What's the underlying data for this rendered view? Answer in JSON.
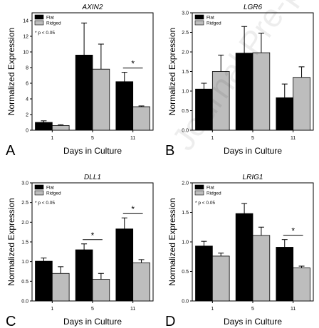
{
  "figure": {
    "watermark": "Journal Pre-proof",
    "legend_labels": [
      "Flat",
      "Ridged"
    ],
    "significance_note": "* p < 0.05",
    "ylabel": "Normalized Expression",
    "xlabel": "Days in Culture",
    "colors": {
      "flat": "#000000",
      "ridged": "#bdbdbd"
    }
  },
  "chart_data": [
    {
      "type": "bar",
      "panel": "A",
      "title": "AXIN2",
      "categories": [
        "1",
        "5",
        "11"
      ],
      "series": [
        {
          "name": "Flat",
          "values": [
            1.0,
            9.6,
            6.2
          ],
          "error": [
            0.2,
            4.1,
            1.2
          ]
        },
        {
          "name": "Ridged",
          "values": [
            0.6,
            7.8,
            3.0
          ],
          "error": [
            0.1,
            3.2,
            0.1
          ]
        }
      ],
      "ylim": [
        0,
        15
      ],
      "yticks": [
        "0",
        "2",
        "4",
        "6",
        "8",
        "10",
        "12",
        "14"
      ],
      "yticks_values": [
        0,
        2,
        4,
        6,
        8,
        10,
        12,
        14
      ],
      "xlabel": "Days in Culture",
      "ylabel": "Normalized Expression",
      "legend": "top-left",
      "significance": [
        {
          "category": "11",
          "label": "*"
        }
      ],
      "note": "* p < 0.05"
    },
    {
      "type": "bar",
      "panel": "B",
      "title": "LGR6",
      "categories": [
        "1",
        "5",
        "11"
      ],
      "series": [
        {
          "name": "Flat",
          "values": [
            1.05,
            1.97,
            0.83
          ],
          "error": [
            0.15,
            0.68,
            0.35
          ]
        },
        {
          "name": "Ridged",
          "values": [
            1.5,
            1.98,
            1.35
          ],
          "error": [
            0.42,
            0.5,
            0.27
          ]
        }
      ],
      "ylim": [
        0,
        3.0
      ],
      "yticks": [
        "0.0",
        "0.5",
        "1.0",
        "1.5",
        "2.0",
        "2.5",
        "3.0"
      ],
      "yticks_values": [
        0,
        0.5,
        1.0,
        1.5,
        2.0,
        2.5,
        3.0
      ],
      "xlabel": "Days in Culture",
      "ylabel": "Normalized Expression",
      "legend": "top-left",
      "significance": [],
      "note": ""
    },
    {
      "type": "bar",
      "panel": "C",
      "title": "DLL1",
      "categories": [
        "1",
        "5",
        "11"
      ],
      "series": [
        {
          "name": "Flat",
          "values": [
            1.01,
            1.3,
            1.83
          ],
          "error": [
            0.08,
            0.15,
            0.28
          ]
        },
        {
          "name": "Ridged",
          "values": [
            0.7,
            0.55,
            0.97
          ],
          "error": [
            0.17,
            0.15,
            0.08
          ]
        }
      ],
      "ylim": [
        0,
        3.0
      ],
      "yticks": [
        "0.0",
        "0.5",
        "1.0",
        "1.5",
        "2.0",
        "2.5",
        "3.0"
      ],
      "yticks_values": [
        0,
        0.5,
        1.0,
        1.5,
        2.0,
        2.5,
        3.0
      ],
      "xlabel": "Days in Culture",
      "ylabel": "Normalized Expression",
      "legend": "top-left",
      "significance": [
        {
          "category": "5",
          "label": "*"
        },
        {
          "category": "11",
          "label": "*"
        }
      ],
      "note": "* p < 0.05"
    },
    {
      "type": "bar",
      "panel": "D",
      "title": "LRIG1",
      "categories": [
        "1",
        "5",
        "11"
      ],
      "series": [
        {
          "name": "Flat",
          "values": [
            0.93,
            1.48,
            0.91
          ],
          "error": [
            0.08,
            0.17,
            0.13
          ]
        },
        {
          "name": "Ridged",
          "values": [
            0.76,
            1.11,
            0.56
          ],
          "error": [
            0.05,
            0.14,
            0.03
          ]
        }
      ],
      "ylim": [
        0,
        2.0
      ],
      "yticks": [
        "0.0",
        "0.5",
        "1.0",
        "1.5",
        "2.0"
      ],
      "yticks_values": [
        0,
        0.5,
        1.0,
        1.5,
        2.0
      ],
      "xlabel": "Days in Culture",
      "ylabel": "Normalized Expression",
      "legend": "top-left",
      "significance": [
        {
          "category": "11",
          "label": "*"
        }
      ],
      "note": "* p < 0.05"
    }
  ]
}
